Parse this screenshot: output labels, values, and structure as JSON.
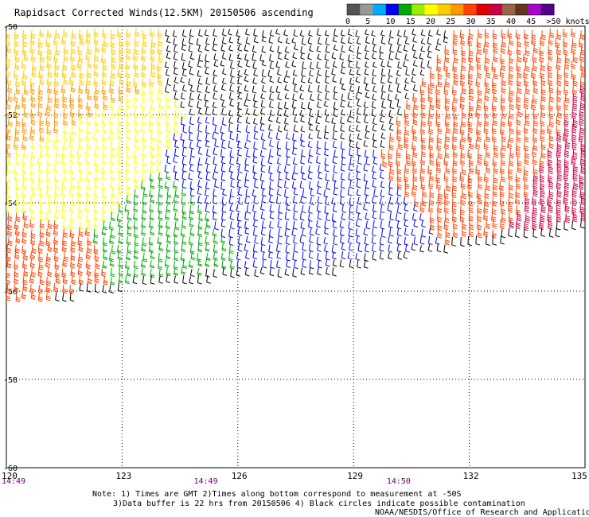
{
  "title": "Rapidsact Corrected Winds(12.5KM) 20150506 ascending",
  "colorbar": {
    "ticks": [
      "0",
      "5",
      "10",
      "15",
      "20",
      "25",
      "30",
      "35",
      "40",
      "45",
      ">50 knots"
    ],
    "colors": [
      "#555555",
      "#999999",
      "#00aaff",
      "#0000ee",
      "#00aa00",
      "#99ee00",
      "#ffff00",
      "#ffcc00",
      "#ff9900",
      "#ff4400",
      "#dd0000",
      "#cc0044",
      "#996644",
      "#663322",
      "#aa00cc",
      "#550088"
    ]
  },
  "times": [
    {
      "label": "14:49",
      "lon": 120
    },
    {
      "label": "14:49",
      "lon": 124.9
    },
    {
      "label": "14:50",
      "lon": 129.9
    }
  ],
  "notes": [
    "Note: 1) Times are GMT 2)Times along bottom correspond to measurement at -50S",
    "3)Data buffer is 22 hrs from 20150506 4) Black circles indicate possible contamination",
    "NOAA/NESDIS/Office of Research and Applications"
  ],
  "chart_data": {
    "type": "wind-barb",
    "title": "Rapidsact Corrected Winds(12.5KM) 20150506 ascending",
    "x": {
      "min": 120,
      "max": 135,
      "ticks": [
        120,
        123,
        126,
        129,
        132,
        135
      ],
      "tick_labels": [
        "120",
        "123",
        "126",
        "129",
        "132",
        "135"
      ]
    },
    "y": {
      "min": -60,
      "max": -50,
      "ticks": [
        -50,
        -52,
        -54,
        -56,
        -58,
        -60
      ],
      "tick_labels": [
        "-50",
        "-52",
        "-54",
        "-56",
        "-58",
        "-60"
      ]
    },
    "grid": true,
    "units": "knots",
    "swath_edges": [
      [
        120,
        -56.5
      ],
      [
        122,
        -56.0
      ],
      [
        124,
        -55.75
      ],
      [
        126,
        -55.65
      ],
      [
        128,
        -55.6
      ],
      [
        130,
        -55.2
      ],
      [
        132,
        -54.9
      ],
      [
        134,
        -54.65
      ],
      [
        135,
        -54.5
      ]
    ],
    "barb_groups": [
      {
        "color": "#ffff00",
        "lon": 121.5,
        "lat": -53.0,
        "speed_kt": 22,
        "dir_deg": 240
      },
      {
        "color": "#ffcc00",
        "lon": 120.5,
        "lat": -50.6,
        "speed_kt": 25,
        "dir_deg": 240
      },
      {
        "color": "#ff9900",
        "lon": 120.4,
        "lat": -51.8,
        "speed_kt": 30,
        "dir_deg": 240
      },
      {
        "color": "#ff4400",
        "lon": 120.4,
        "lat": -55.6,
        "speed_kt": 33,
        "dir_deg": 240
      },
      {
        "color": "#00aa00",
        "lon": 124.5,
        "lat": -54.8,
        "speed_kt": 17,
        "dir_deg": 235
      },
      {
        "color": "#0000ee",
        "lon": 126.2,
        "lat": -54.0,
        "speed_kt": 13,
        "dir_deg": 230
      },
      {
        "color": "#0000ee",
        "lon": 127.5,
        "lat": -55.3,
        "speed_kt": 13,
        "dir_deg": 230
      },
      {
        "color": "#000000",
        "lon": 127.5,
        "lat": -50.5,
        "speed_kt": 12,
        "dir_deg": 220
      },
      {
        "color": "#ff4400",
        "lon": 133.5,
        "lat": -52.5,
        "speed_kt": 33,
        "dir_deg": 250
      },
      {
        "color": "#cc0044",
        "lon": 134.6,
        "lat": -52.8,
        "speed_kt": 37,
        "dir_deg": 250
      }
    ]
  }
}
